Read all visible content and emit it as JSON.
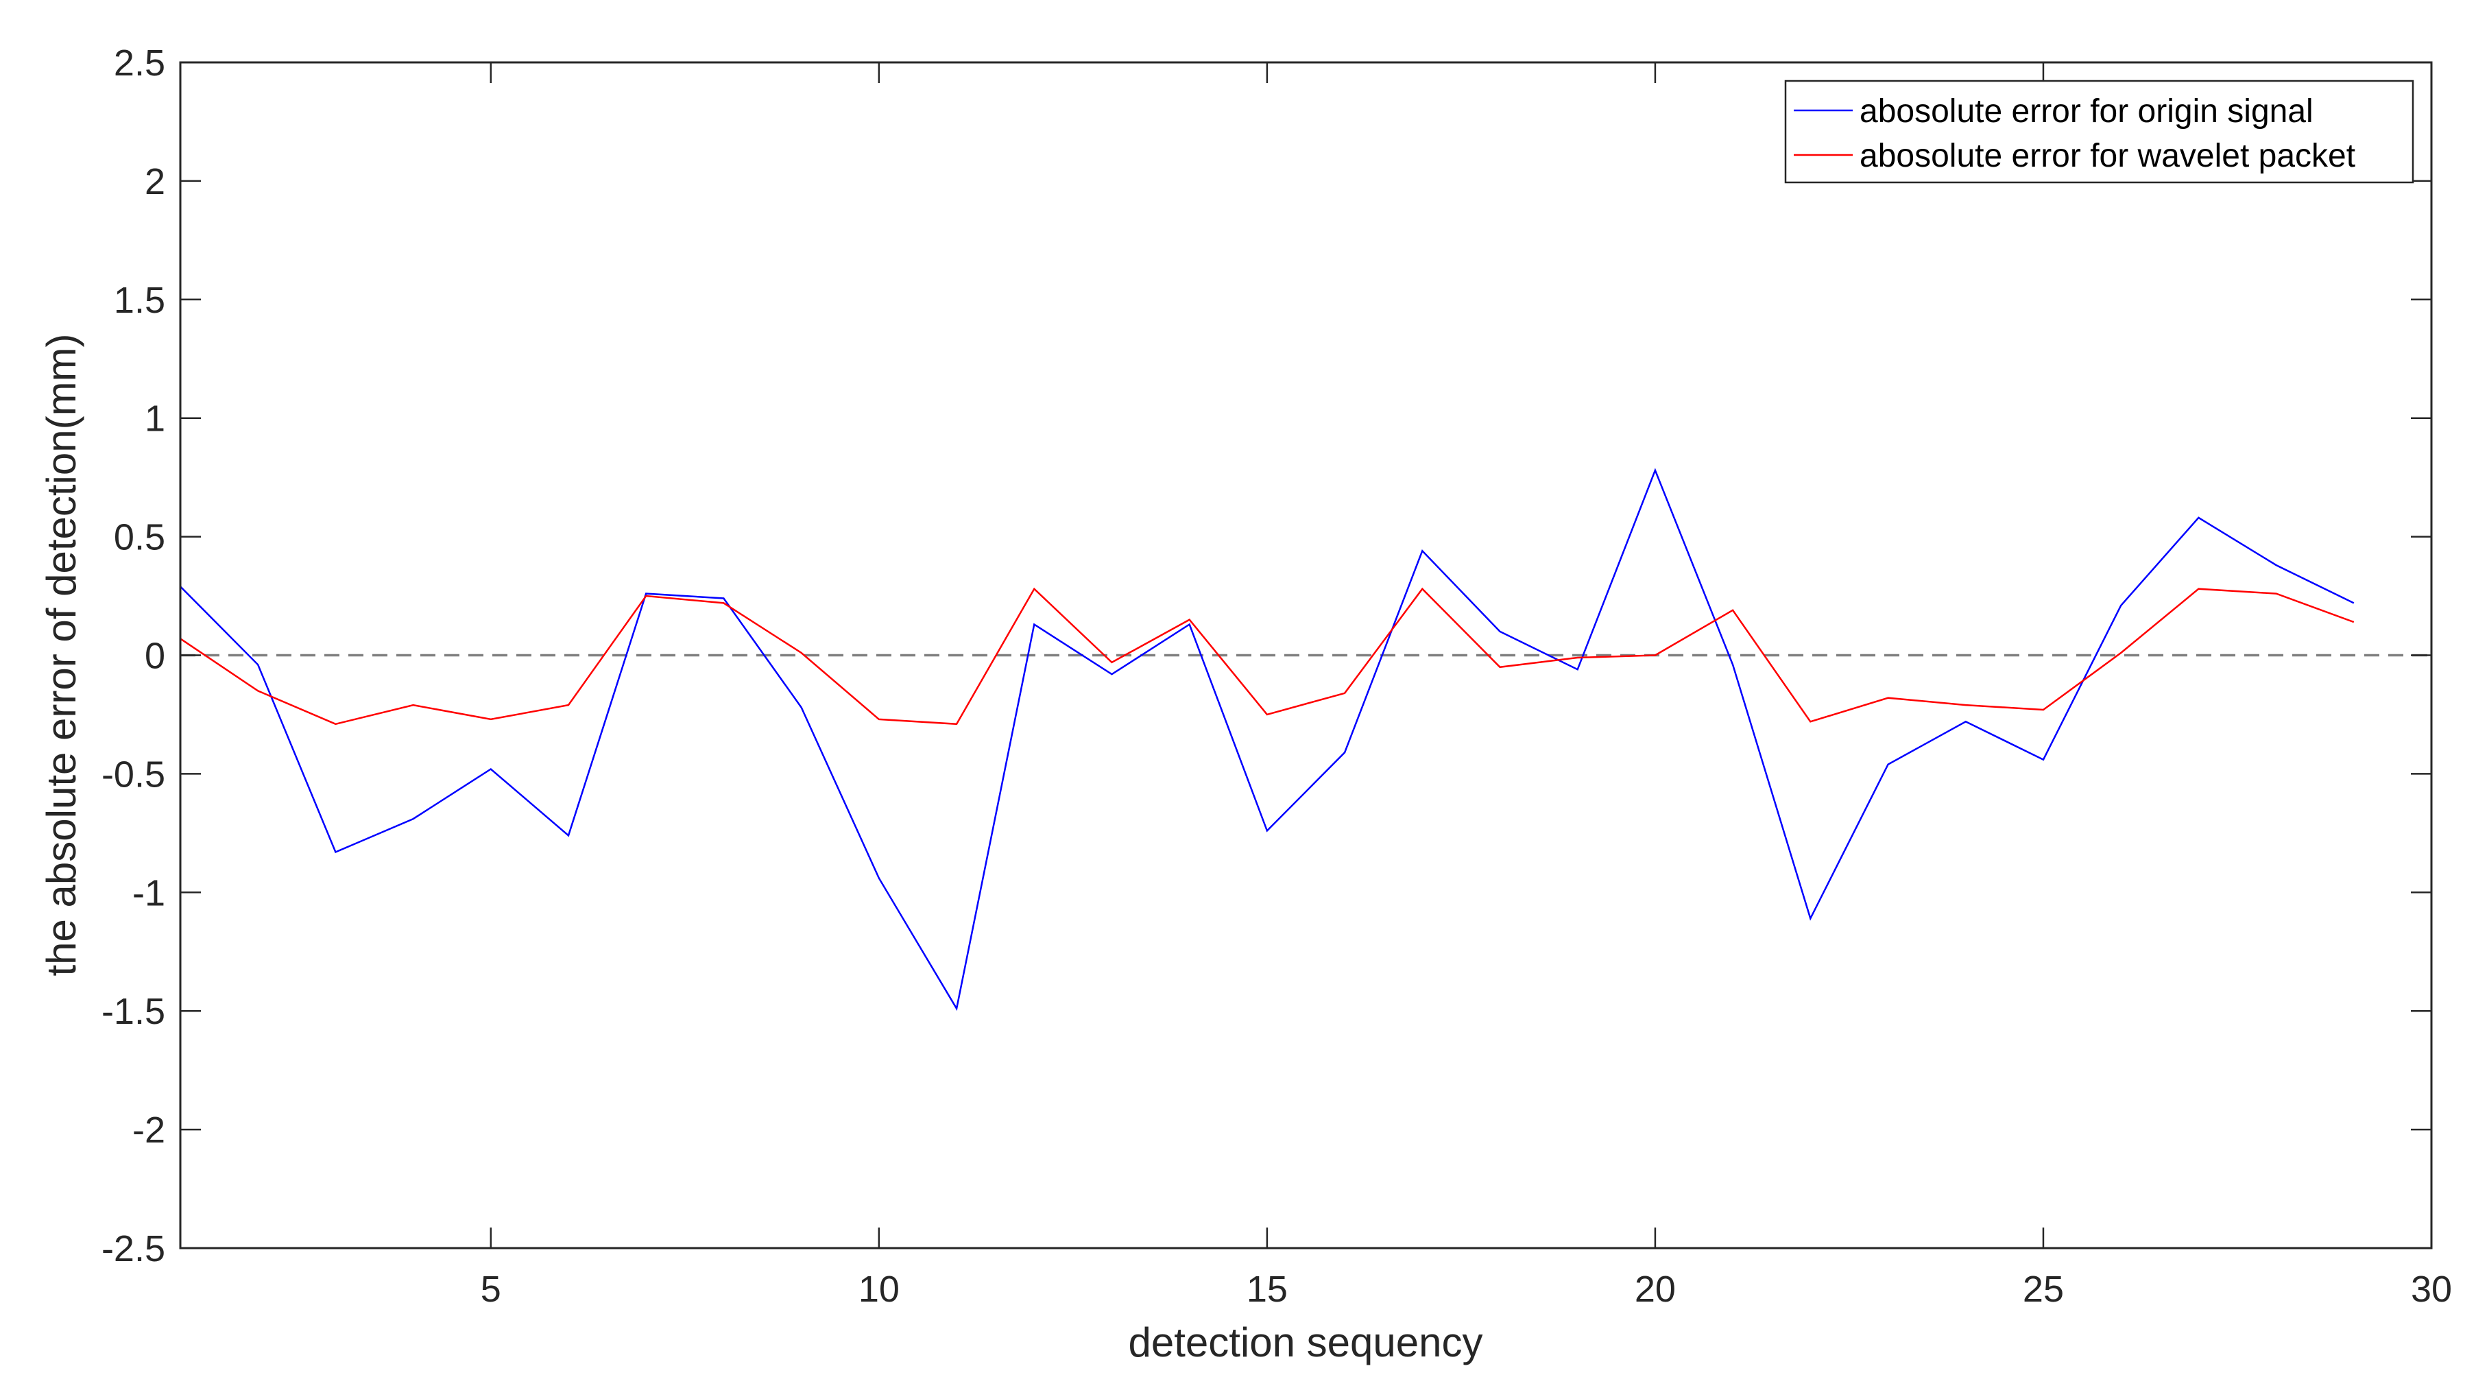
{
  "chart_data": {
    "type": "line",
    "title": "",
    "xlabel": "detection sequency",
    "ylabel": "the absolute error of detection(mm)",
    "xlim": [
      1,
      30
    ],
    "ylim": [
      -2.5,
      2.5
    ],
    "x_ticks": [
      5,
      10,
      15,
      20,
      25,
      30
    ],
    "x_tick_labels": [
      "5",
      "10",
      "15",
      "20",
      "25",
      "30"
    ],
    "y_ticks": [
      -2.5,
      -2,
      -1.5,
      -1,
      -0.5,
      0,
      0.5,
      1,
      1.5,
      2,
      2.5
    ],
    "y_tick_labels": [
      "-2.5",
      "-2",
      "-1.5",
      "-1",
      "-0.5",
      "0",
      "0.5",
      "1",
      "1.5",
      "2",
      "2.5"
    ],
    "grid": false,
    "legend_position": "top-right",
    "reference_line": {
      "y": 0,
      "style": "dashed",
      "color": "#808080"
    },
    "x": [
      1,
      2,
      3,
      4,
      5,
      6,
      7,
      8,
      9,
      10,
      11,
      12,
      13,
      14,
      15,
      16,
      17,
      18,
      19,
      20,
      21,
      22,
      23,
      24,
      25,
      26,
      27,
      28,
      29
    ],
    "series": [
      {
        "name": "abosolute error for origin signal",
        "color": "#0000ff",
        "values": [
          0.29,
          -0.04,
          -0.83,
          -0.69,
          -0.48,
          -0.76,
          0.26,
          0.24,
          -0.22,
          -0.94,
          -1.49,
          0.13,
          -0.08,
          0.13,
          -0.74,
          -0.41,
          0.44,
          0.1,
          -0.06,
          0.78,
          -0.04,
          -1.11,
          -0.46,
          -0.28,
          -0.44,
          0.21,
          0.58,
          0.38,
          0.22
        ]
      },
      {
        "name": "abosolute error for wavelet packet",
        "color": "#ff0000",
        "values": [
          0.07,
          -0.15,
          -0.29,
          -0.21,
          -0.27,
          -0.21,
          0.25,
          0.22,
          0.01,
          -0.27,
          -0.29,
          0.28,
          -0.03,
          0.15,
          -0.25,
          -0.16,
          0.28,
          -0.05,
          -0.01,
          0.0,
          0.19,
          -0.28,
          -0.18,
          -0.21,
          -0.23,
          0.01,
          0.28,
          0.26,
          0.14
        ]
      }
    ]
  }
}
